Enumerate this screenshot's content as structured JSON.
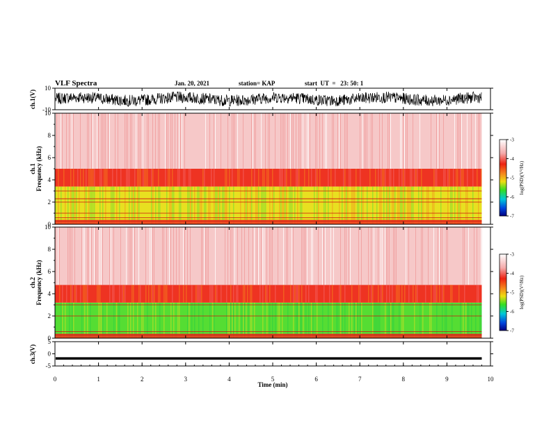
{
  "header": {
    "title": "VLF Spectra",
    "date": "Jan. 20, 2021",
    "station": "station= KAP",
    "start": "start  UT  =   23: 50: 1"
  },
  "colors": {
    "pale": "#f6c8c8",
    "red": "#ee3322",
    "orange": "#f58a1c",
    "yellow": "#e8e020",
    "green": "#55dd33",
    "line": "#cc1111"
  },
  "chart_data": [
    {
      "type": "line",
      "panel": "ch1-waveform",
      "ylabel": "ch.1(V)",
      "ylim": [
        -10,
        10
      ],
      "yticks": [
        "10",
        "-10"
      ],
      "description_values": {
        "approx_amplitude": [
          -6,
          6
        ]
      }
    },
    {
      "type": "heatmap",
      "panel": "ch1-spectrogram",
      "ylabel": "ch.1\nFrequency (kHz)",
      "ylabel_parts": [
        "ch.1",
        "Frequency (kHz)"
      ],
      "ylim": [
        0,
        10
      ],
      "yticks": [
        "0",
        "2",
        "4",
        "6",
        "8",
        "10"
      ],
      "bands_khz": [
        {
          "from": 0,
          "to": 3.4,
          "level": "yellow-green"
        },
        {
          "from": 3.4,
          "to": 5.0,
          "level": "red"
        },
        {
          "from": 5.0,
          "to": 10,
          "level": "pale-red"
        }
      ],
      "lines_khz": [
        0.3,
        0.6,
        1.0,
        2.0,
        2.3,
        3.0
      ]
    },
    {
      "type": "heatmap",
      "panel": "ch2-spectrogram",
      "ylabel_parts": [
        "ch.2",
        "Frequency (kHz)"
      ],
      "ylim": [
        0,
        10
      ],
      "yticks": [
        "0",
        "2",
        "4",
        "6",
        "8",
        "10"
      ],
      "bands_khz": [
        {
          "from": 0,
          "to": 3.2,
          "level": "green-yellow"
        },
        {
          "from": 3.2,
          "to": 4.8,
          "level": "red"
        },
        {
          "from": 4.8,
          "to": 10,
          "level": "pale-red"
        }
      ],
      "lines_khz": [
        0.3,
        0.6,
        2.0,
        3.0
      ]
    },
    {
      "type": "line",
      "panel": "ch3-waveform",
      "ylabel": "ch.3(V)",
      "ylim": [
        -5,
        5
      ],
      "yticks": [
        "5",
        "0",
        "-5"
      ],
      "description_values": {
        "approx_band": [
          -2.4,
          -1.4
        ]
      }
    }
  ],
  "colorbar": {
    "label": "log(PSD)(V²/Hz)",
    "ticks": [
      "-3",
      "-4",
      "-5",
      "-6",
      "-7"
    ],
    "range": [
      -7,
      -3
    ]
  },
  "xaxis": {
    "label": "Time (min)",
    "ticks": [
      "0",
      "1",
      "2",
      "3",
      "4",
      "5",
      "6",
      "7",
      "8",
      "9",
      "10"
    ],
    "range": [
      0,
      10
    ],
    "data_end": 9.8
  }
}
